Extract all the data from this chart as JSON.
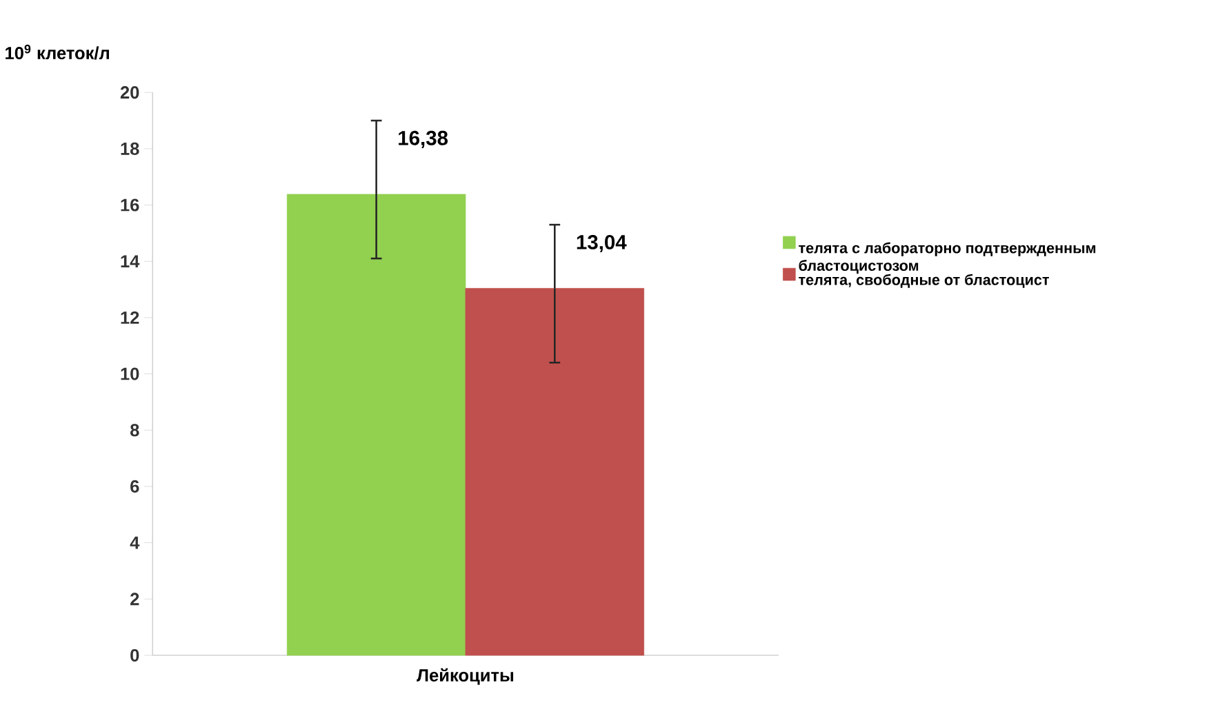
{
  "chart_data": {
    "type": "bar",
    "ylabel": "10$^{9}$ клеток/л",
    "categories": [
      "Лейкоциты"
    ],
    "series": [
      {
        "name": "телята с лабораторно подтвержденным  бластоцистозом",
        "color": "#92d050",
        "values": [
          16.38
        ],
        "errors": [
          [
            14.1,
            19.0
          ]
        ],
        "value_labels": [
          "16,38"
        ]
      },
      {
        "name": "телята, свободные от бластоцист",
        "color": "#c0504d",
        "values": [
          13.04
        ],
        "errors": [
          [
            10.4,
            15.3
          ]
        ],
        "value_labels": [
          "13,04"
        ]
      }
    ],
    "ylim": [
      0,
      20
    ],
    "yticks": [
      0,
      2,
      4,
      6,
      8,
      10,
      12,
      14,
      16,
      18,
      20
    ],
    "grid": false,
    "legend": "right"
  }
}
